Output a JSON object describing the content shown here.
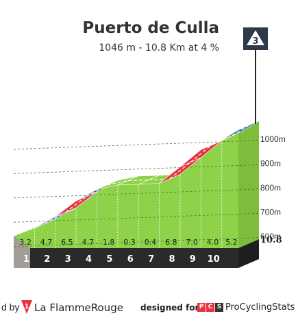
{
  "climb": {
    "title": "Puerto de Culla",
    "subtitle": "1046 m - 10.8 Km at 4 %",
    "category": "3"
  },
  "chart_data": {
    "type": "area",
    "xlabel": "",
    "ylabel": "",
    "total_distance": "10.8",
    "km_markers": [
      "1",
      "2",
      "3",
      "4",
      "5",
      "6",
      "7",
      "8",
      "9",
      "10"
    ],
    "segment_gradients": [
      "3.2",
      "4.7",
      "6.5",
      "4.7",
      "1.8",
      "0.3",
      "0.4",
      "6.8",
      "7.0",
      "4.0",
      "5.2"
    ],
    "segment_distance_km": [
      1,
      1,
      1,
      1,
      1,
      1,
      1,
      1,
      1,
      1,
      0.8
    ],
    "segment_colors": [
      "#8ed24a",
      "#2f6c9e",
      "#e8323f",
      "#2f6c9e",
      "#8ed24a",
      "#8ed24a",
      "#8ed24a",
      "#e8323f",
      "#e8323f",
      "#8ed24a",
      "#2f6c9e"
    ],
    "altitude_labels": [
      "1000m",
      "900m",
      "800m",
      "700m",
      "600m"
    ],
    "altitude_values": [
      1000,
      900,
      800,
      700,
      600
    ],
    "start_altitude": 610,
    "summit_altitude": 1046,
    "colors": {
      "fill": "#8ed24a",
      "ground": "#2a2a2a",
      "hill_side": "#a39d95",
      "easy": "#8ed24a",
      "medium": "#2f6c9e",
      "hard": "#e8323f",
      "flag": "#2d3a4a"
    }
  },
  "footer": {
    "credit_by": "d by",
    "lfr_logo_text": "1",
    "lfr_name": "La FlammeRouge",
    "designed_for": "designed for",
    "pcs_logo": [
      "P",
      "C",
      "S"
    ],
    "pcs_name": "ProCyclingStats"
  }
}
